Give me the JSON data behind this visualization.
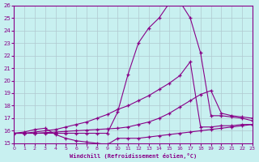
{
  "title": "",
  "xlabel": "Windchill (Refroidissement éolien,°C)",
  "ylabel": "",
  "bg_color": "#c8f0f0",
  "grid_color": "#b0c8d0",
  "line_color": "#880088",
  "xlim": [
    0,
    23
  ],
  "ylim": [
    15,
    26
  ],
  "xticks": [
    0,
    1,
    2,
    3,
    4,
    5,
    6,
    7,
    8,
    9,
    10,
    11,
    12,
    13,
    14,
    15,
    16,
    17,
    18,
    19,
    20,
    21,
    22,
    23
  ],
  "yticks": [
    15,
    16,
    17,
    18,
    19,
    20,
    21,
    22,
    23,
    24,
    25,
    26
  ],
  "lines": [
    {
      "x": [
        0,
        1,
        2,
        3,
        4,
        5,
        6,
        7,
        8,
        9,
        10,
        11,
        12,
        13,
        14,
        15,
        16,
        17,
        18,
        19,
        20,
        21,
        22,
        23
      ],
      "y": [
        15.8,
        15.8,
        15.8,
        15.8,
        15.8,
        15.8,
        15.8,
        15.8,
        15.8,
        15.8,
        17.5,
        20.5,
        23.0,
        24.2,
        25.0,
        26.2,
        26.3,
        25.0,
        22.2,
        17.2,
        17.2,
        17.1,
        17.0,
        16.8
      ]
    },
    {
      "x": [
        0,
        1,
        2,
        3,
        4,
        5,
        6,
        7,
        8,
        9,
        10,
        11,
        12,
        13,
        14,
        15,
        16,
        17,
        18,
        19,
        20,
        21,
        22,
        23
      ],
      "y": [
        15.8,
        15.8,
        15.9,
        16.0,
        16.1,
        16.3,
        16.5,
        16.7,
        17.0,
        17.3,
        17.7,
        18.0,
        18.4,
        18.8,
        19.3,
        19.8,
        20.4,
        21.5,
        16.3,
        16.3,
        16.4,
        16.4,
        16.5,
        16.5
      ]
    },
    {
      "x": [
        0,
        1,
        2,
        3,
        4,
        5,
        6,
        7,
        8,
        9,
        10,
        11,
        12,
        13,
        14,
        15,
        16,
        17,
        18,
        19,
        20,
        21,
        22,
        23
      ],
      "y": [
        15.8,
        15.8,
        15.8,
        15.85,
        15.9,
        15.95,
        16.0,
        16.05,
        16.1,
        16.15,
        16.2,
        16.3,
        16.5,
        16.7,
        17.0,
        17.4,
        17.9,
        18.4,
        18.9,
        19.2,
        17.4,
        17.2,
        17.1,
        17.0
      ]
    },
    {
      "x": [
        0,
        1,
        2,
        3,
        4,
        5,
        6,
        7,
        8,
        9,
        10,
        11,
        12,
        13,
        14,
        15,
        16,
        17,
        18,
        19,
        20,
        21,
        22,
        23
      ],
      "y": [
        15.8,
        15.9,
        16.1,
        16.2,
        15.7,
        15.4,
        15.2,
        15.1,
        15.0,
        14.9,
        15.4,
        15.4,
        15.4,
        15.5,
        15.6,
        15.7,
        15.8,
        15.9,
        16.0,
        16.1,
        16.2,
        16.3,
        16.4,
        16.5
      ]
    }
  ]
}
